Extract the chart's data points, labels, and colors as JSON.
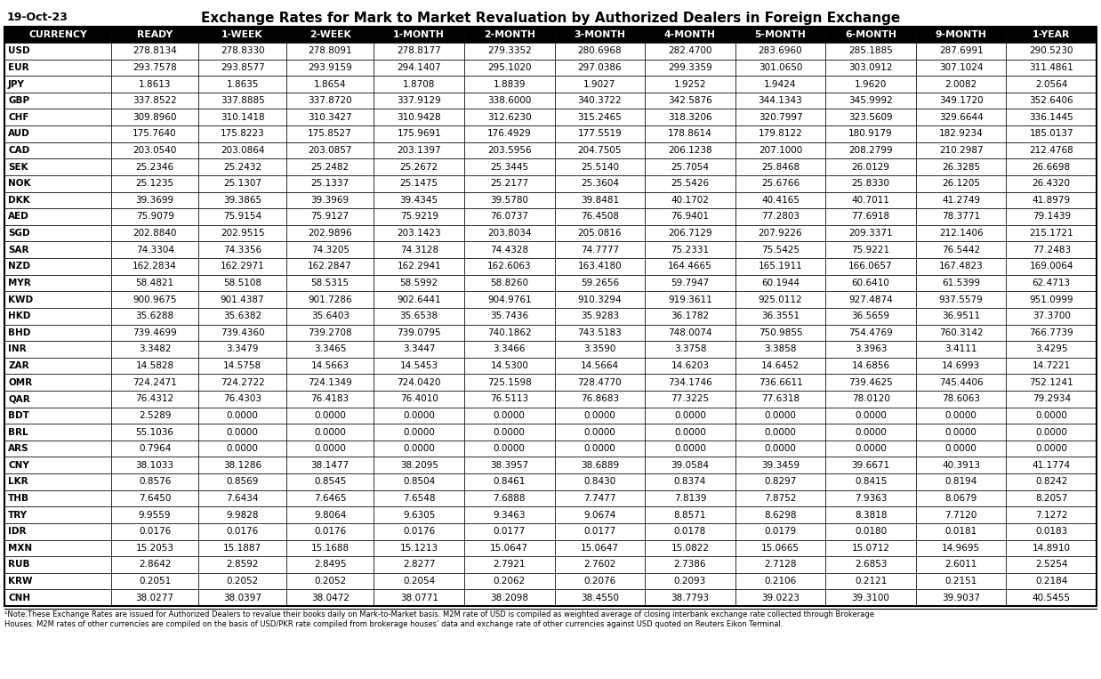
{
  "title": "Exchange Rates for Mark to Market Revaluation by Authorized Dealers in Foreign Exchange",
  "date_label": "19-Oct-23",
  "columns": [
    "CURRENCY",
    "READY",
    "1-WEEK",
    "2-WEEK",
    "1-MONTH",
    "2-MONTH",
    "3-MONTH",
    "4-MONTH",
    "5-MONTH",
    "6-MONTH",
    "9-MONTH",
    "1-YEAR"
  ],
  "rows": [
    [
      "USD",
      "278.8134",
      "278.8330",
      "278.8091",
      "278.8177",
      "279.3352",
      "280.6968",
      "282.4700",
      "283.6960",
      "285.1885",
      "287.6991",
      "290.5230"
    ],
    [
      "EUR",
      "293.7578",
      "293.8577",
      "293.9159",
      "294.1407",
      "295.1020",
      "297.0386",
      "299.3359",
      "301.0650",
      "303.0912",
      "307.1024",
      "311.4861"
    ],
    [
      "JPY",
      "1.8613",
      "1.8635",
      "1.8654",
      "1.8708",
      "1.8839",
      "1.9027",
      "1.9252",
      "1.9424",
      "1.9620",
      "2.0082",
      "2.0564"
    ],
    [
      "GBP",
      "337.8522",
      "337.8885",
      "337.8720",
      "337.9129",
      "338.6000",
      "340.3722",
      "342.5876",
      "344.1343",
      "345.9992",
      "349.1720",
      "352.6406"
    ],
    [
      "CHF",
      "309.8960",
      "310.1418",
      "310.3427",
      "310.9428",
      "312.6230",
      "315.2465",
      "318.3206",
      "320.7997",
      "323.5609",
      "329.6644",
      "336.1445"
    ],
    [
      "AUD",
      "175.7640",
      "175.8223",
      "175.8527",
      "175.9691",
      "176.4929",
      "177.5519",
      "178.8614",
      "179.8122",
      "180.9179",
      "182.9234",
      "185.0137"
    ],
    [
      "CAD",
      "203.0540",
      "203.0864",
      "203.0857",
      "203.1397",
      "203.5956",
      "204.7505",
      "206.1238",
      "207.1000",
      "208.2799",
      "210.2987",
      "212.4768"
    ],
    [
      "SEK",
      "25.2346",
      "25.2432",
      "25.2482",
      "25.2672",
      "25.3445",
      "25.5140",
      "25.7054",
      "25.8468",
      "26.0129",
      "26.3285",
      "26.6698"
    ],
    [
      "NOK",
      "25.1235",
      "25.1307",
      "25.1337",
      "25.1475",
      "25.2177",
      "25.3604",
      "25.5426",
      "25.6766",
      "25.8330",
      "26.1205",
      "26.4320"
    ],
    [
      "DKK",
      "39.3699",
      "39.3865",
      "39.3969",
      "39.4345",
      "39.5780",
      "39.8481",
      "40.1702",
      "40.4165",
      "40.7011",
      "41.2749",
      "41.8979"
    ],
    [
      "AED",
      "75.9079",
      "75.9154",
      "75.9127",
      "75.9219",
      "76.0737",
      "76.4508",
      "76.9401",
      "77.2803",
      "77.6918",
      "78.3771",
      "79.1439"
    ],
    [
      "SGD",
      "202.8840",
      "202.9515",
      "202.9896",
      "203.1423",
      "203.8034",
      "205.0816",
      "206.7129",
      "207.9226",
      "209.3371",
      "212.1406",
      "215.1721"
    ],
    [
      "SAR",
      "74.3304",
      "74.3356",
      "74.3205",
      "74.3128",
      "74.4328",
      "74.7777",
      "75.2331",
      "75.5425",
      "75.9221",
      "76.5442",
      "77.2483"
    ],
    [
      "NZD",
      "162.2834",
      "162.2971",
      "162.2847",
      "162.2941",
      "162.6063",
      "163.4180",
      "164.4665",
      "165.1911",
      "166.0657",
      "167.4823",
      "169.0064"
    ],
    [
      "MYR",
      "58.4821",
      "58.5108",
      "58.5315",
      "58.5992",
      "58.8260",
      "59.2656",
      "59.7947",
      "60.1944",
      "60.6410",
      "61.5399",
      "62.4713"
    ],
    [
      "KWD",
      "900.9675",
      "901.4387",
      "901.7286",
      "902.6441",
      "904.9761",
      "910.3294",
      "919.3611",
      "925.0112",
      "927.4874",
      "937.5579",
      "951.0999"
    ],
    [
      "HKD",
      "35.6288",
      "35.6382",
      "35.6403",
      "35.6538",
      "35.7436",
      "35.9283",
      "36.1782",
      "36.3551",
      "36.5659",
      "36.9511",
      "37.3700"
    ],
    [
      "BHD",
      "739.4699",
      "739.4360",
      "739.2708",
      "739.0795",
      "740.1862",
      "743.5183",
      "748.0074",
      "750.9855",
      "754.4769",
      "760.3142",
      "766.7739"
    ],
    [
      "INR",
      "3.3482",
      "3.3479",
      "3.3465",
      "3.3447",
      "3.3466",
      "3.3590",
      "3.3758",
      "3.3858",
      "3.3963",
      "3.4111",
      "3.4295"
    ],
    [
      "ZAR",
      "14.5828",
      "14.5758",
      "14.5663",
      "14.5453",
      "14.5300",
      "14.5664",
      "14.6203",
      "14.6452",
      "14.6856",
      "14.6993",
      "14.7221"
    ],
    [
      "OMR",
      "724.2471",
      "724.2722",
      "724.1349",
      "724.0420",
      "725.1598",
      "728.4770",
      "734.1746",
      "736.6611",
      "739.4625",
      "745.4406",
      "752.1241"
    ],
    [
      "QAR",
      "76.4312",
      "76.4303",
      "76.4183",
      "76.4010",
      "76.5113",
      "76.8683",
      "77.3225",
      "77.6318",
      "78.0120",
      "78.6063",
      "79.2934"
    ],
    [
      "BDT",
      "2.5289",
      "0.0000",
      "0.0000",
      "0.0000",
      "0.0000",
      "0.0000",
      "0.0000",
      "0.0000",
      "0.0000",
      "0.0000",
      "0.0000"
    ],
    [
      "BRL",
      "55.1036",
      "0.0000",
      "0.0000",
      "0.0000",
      "0.0000",
      "0.0000",
      "0.0000",
      "0.0000",
      "0.0000",
      "0.0000",
      "0.0000"
    ],
    [
      "ARS",
      "0.7964",
      "0.0000",
      "0.0000",
      "0.0000",
      "0.0000",
      "0.0000",
      "0.0000",
      "0.0000",
      "0.0000",
      "0.0000",
      "0.0000"
    ],
    [
      "CNY",
      "38.1033",
      "38.1286",
      "38.1477",
      "38.2095",
      "38.3957",
      "38.6889",
      "39.0584",
      "39.3459",
      "39.6671",
      "40.3913",
      "41.1774"
    ],
    [
      "LKR",
      "0.8576",
      "0.8569",
      "0.8545",
      "0.8504",
      "0.8461",
      "0.8430",
      "0.8374",
      "0.8297",
      "0.8415",
      "0.8194",
      "0.8242"
    ],
    [
      "THB",
      "7.6450",
      "7.6434",
      "7.6465",
      "7.6548",
      "7.6888",
      "7.7477",
      "7.8139",
      "7.8752",
      "7.9363",
      "8.0679",
      "8.2057"
    ],
    [
      "TRY",
      "9.9559",
      "9.9828",
      "9.8064",
      "9.6305",
      "9.3463",
      "9.0674",
      "8.8571",
      "8.6298",
      "8.3818",
      "7.7120",
      "7.1272"
    ],
    [
      "IDR",
      "0.0176",
      "0.0176",
      "0.0176",
      "0.0176",
      "0.0177",
      "0.0177",
      "0.0178",
      "0.0179",
      "0.0180",
      "0.0181",
      "0.0183"
    ],
    [
      "MXN",
      "15.2053",
      "15.1887",
      "15.1688",
      "15.1213",
      "15.0647",
      "15.0647",
      "15.0822",
      "15.0665",
      "15.0712",
      "14.9695",
      "14.8910"
    ],
    [
      "RUB",
      "2.8642",
      "2.8592",
      "2.8495",
      "2.8277",
      "2.7921",
      "2.7602",
      "2.7386",
      "2.7128",
      "2.6853",
      "2.6011",
      "2.5254"
    ],
    [
      "KRW",
      "0.2051",
      "0.2052",
      "0.2052",
      "0.2054",
      "0.2062",
      "0.2076",
      "0.2093",
      "0.2106",
      "0.2121",
      "0.2151",
      "0.2184"
    ],
    [
      "CNH",
      "38.0277",
      "38.0397",
      "38.0472",
      "38.0771",
      "38.2098",
      "38.4550",
      "38.7793",
      "39.0223",
      "39.3100",
      "39.9037",
      "40.5455"
    ]
  ],
  "note_line1": "¹Note:These Exchange Rates are issued for Authorized Dealers to revalue their books daily on Mark-to-Market basis. M2M rate of USD is compiled as weighted average of closing interbank exchange rate collected through Brokerage",
  "note_line2": "Houses. M2M rates of other currencies are compiled on the basis of USD/PKR rate compiled from brokerage houses’ data and exchange rate of other currencies against USD quoted on Reuters Eikon Terminal.",
  "header_bg": "#000000",
  "header_fg": "#ffffff",
  "border_color": "#000000",
  "title_color": "#000000",
  "date_color": "#000000",
  "col_weights": [
    1.18,
    0.97,
    0.97,
    0.97,
    1.0,
    1.0,
    1.0,
    1.0,
    1.0,
    1.0,
    1.0,
    1.0
  ]
}
